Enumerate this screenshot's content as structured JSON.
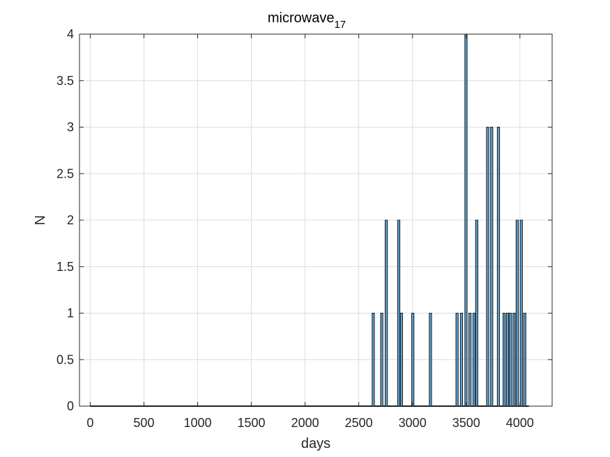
{
  "chart_data": {
    "type": "bar",
    "title": "microwave",
    "title_subscript": "17",
    "xlabel": "days",
    "ylabel": "N",
    "xlim": [
      -100,
      4300
    ],
    "ylim": [
      0,
      4
    ],
    "x_ticks": [
      0,
      500,
      1000,
      1500,
      2000,
      2500,
      3000,
      3500,
      4000
    ],
    "y_ticks": [
      0,
      0.5,
      1,
      1.5,
      2,
      2.5,
      3,
      3.5,
      4
    ],
    "x_tick_labels": [
      "0",
      "500",
      "1000",
      "1500",
      "2000",
      "2500",
      "3000",
      "3500",
      "4000"
    ],
    "y_tick_labels": [
      "0",
      "0.5",
      "1",
      "1.5",
      "2",
      "2.5",
      "3",
      "3.5",
      "4"
    ],
    "grid": true,
    "bar_color": "#5BA3D5",
    "edge_color": "#1a1a1a",
    "bin_range": [
      0,
      4084
    ],
    "bin_width": 21,
    "bins": [
      {
        "x": 2635,
        "count": 1
      },
      {
        "x": 2714,
        "count": 1
      },
      {
        "x": 2756,
        "count": 2
      },
      {
        "x": 2872,
        "count": 2
      },
      {
        "x": 2897,
        "count": 1
      },
      {
        "x": 3003,
        "count": 1
      },
      {
        "x": 3167,
        "count": 1
      },
      {
        "x": 3415,
        "count": 1
      },
      {
        "x": 3456,
        "count": 1
      },
      {
        "x": 3498,
        "count": 4
      },
      {
        "x": 3535,
        "count": 1
      },
      {
        "x": 3573,
        "count": 1
      },
      {
        "x": 3598,
        "count": 2
      },
      {
        "x": 3700,
        "count": 3
      },
      {
        "x": 3737,
        "count": 3
      },
      {
        "x": 3800,
        "count": 3
      },
      {
        "x": 3853,
        "count": 1
      },
      {
        "x": 3885,
        "count": 1
      },
      {
        "x": 3910,
        "count": 1
      },
      {
        "x": 3945,
        "count": 1
      },
      {
        "x": 3975,
        "count": 2
      },
      {
        "x": 4013,
        "count": 2
      },
      {
        "x": 4045,
        "count": 1
      }
    ]
  }
}
